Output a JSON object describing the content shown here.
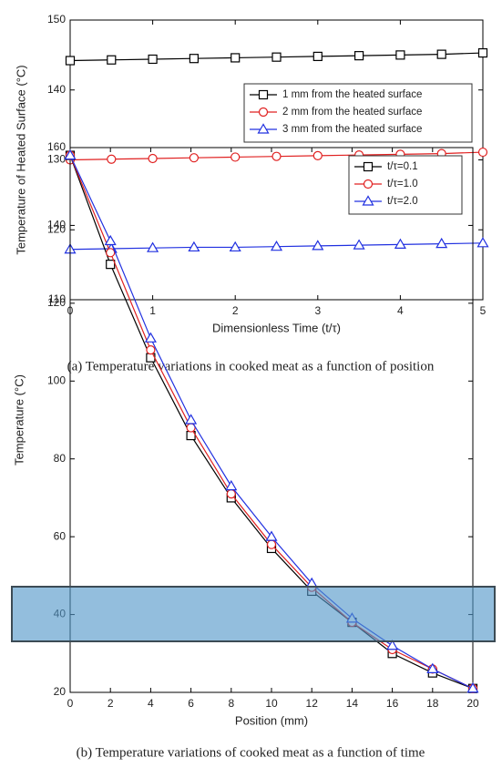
{
  "chart_data": [
    {
      "type": "line",
      "caption": "(a) Temperature variations in cooked meat as a function of position",
      "xlabel": "Dimensionless Time (t/τ)",
      "ylabel": "Temperature of Heated Surface (°C)",
      "x": [
        0,
        0.5,
        1,
        1.5,
        2,
        2.5,
        3,
        3.5,
        4,
        4.5,
        5
      ],
      "series": [
        {
          "name": "1 mm from the heated surface",
          "color": "#000000",
          "marker": "square",
          "values": [
            144.2,
            144.3,
            144.4,
            144.5,
            144.6,
            144.7,
            144.8,
            144.9,
            145.0,
            145.1,
            145.3
          ]
        },
        {
          "name": "2 mm from the heated surface",
          "color": "#e02020",
          "marker": "circle",
          "values": [
            130.0,
            130.1,
            130.2,
            130.3,
            130.4,
            130.5,
            130.6,
            130.7,
            130.8,
            130.9,
            131.1
          ]
        },
        {
          "name": "3 mm from the heated surface",
          "color": "#2030e0",
          "marker": "triangle",
          "values": [
            117.2,
            117.3,
            117.4,
            117.5,
            117.5,
            117.6,
            117.7,
            117.8,
            117.9,
            118.0,
            118.1
          ]
        }
      ],
      "xlim": [
        0,
        5
      ],
      "xticks": [
        0,
        1,
        2,
        3,
        4,
        5
      ],
      "ylim": [
        110,
        150
      ],
      "yticks": [
        110,
        120,
        130,
        140,
        150
      ],
      "legend": "upper right"
    },
    {
      "type": "line",
      "caption": "(b) Temperature variations of cooked meat as a function of time",
      "xlabel": "Position (mm)",
      "ylabel": "Temperature (°C)",
      "x": [
        0,
        2,
        4,
        6,
        8,
        10,
        12,
        14,
        16,
        18,
        20
      ],
      "series": [
        {
          "name": "t/τ=0.1",
          "color": "#000000",
          "marker": "square",
          "values": [
            158,
            130,
            106,
            86,
            70,
            57,
            46,
            38,
            30,
            25,
            21
          ]
        },
        {
          "name": "t/τ=1.0",
          "color": "#e02020",
          "marker": "circle",
          "values": [
            158,
            133,
            108,
            88,
            71,
            58,
            47,
            38,
            31,
            26,
            21
          ]
        },
        {
          "name": "t/τ=2.0",
          "color": "#2030e0",
          "marker": "triangle",
          "values": [
            158,
            136,
            111,
            90,
            73,
            60,
            48,
            39,
            32,
            26,
            21
          ]
        }
      ],
      "xlim": [
        0,
        20
      ],
      "xticks": [
        0,
        2,
        4,
        6,
        8,
        10,
        12,
        14,
        16,
        18,
        20
      ],
      "ylim": [
        20,
        160
      ],
      "yticks": [
        20,
        40,
        60,
        80,
        100,
        120,
        140,
        160
      ],
      "legend": "upper right"
    }
  ]
}
